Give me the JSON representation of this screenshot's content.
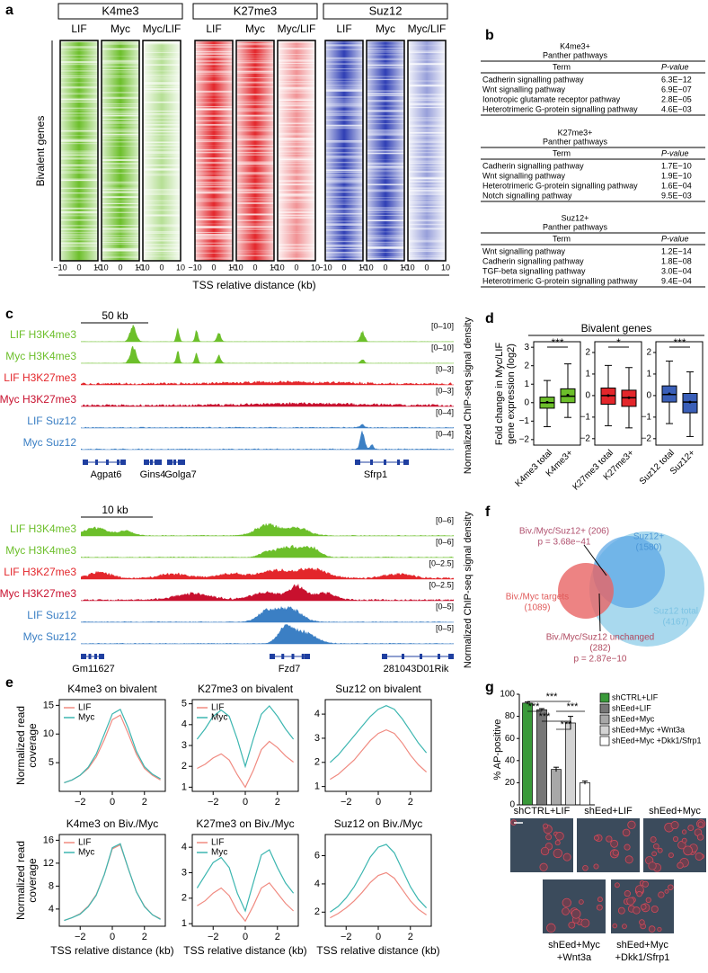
{
  "figure": {
    "panel_labels": [
      "a",
      "b",
      "c",
      "d",
      "e",
      "f",
      "g"
    ]
  },
  "heatmaps": {
    "groups": [
      {
        "name": "K4me3",
        "columns": [
          "LIF",
          "Myc",
          "Myc/LIF"
        ],
        "color": "#6cbf2a"
      },
      {
        "name": "K27me3",
        "columns": [
          "LIF",
          "Myc",
          "Myc/LIF"
        ],
        "color": "#e3262b"
      },
      {
        "name": "Suz12",
        "columns": [
          "LIF",
          "Myc",
          "Myc/LIF"
        ],
        "color": "#2f3fb5"
      }
    ],
    "xtick_labels": [
      "−10",
      "0",
      "10"
    ],
    "ylabel": "Bivalent genes",
    "xlabel": "TSS relative distance (kb)"
  },
  "tables": [
    {
      "heading": "K4me3+",
      "subheading": "Panther pathways",
      "columns": [
        "Term",
        "P-value"
      ],
      "rows": [
        [
          "Cadherin signalling pathway",
          "6.3E−12"
        ],
        [
          "Wnt signalling pathway",
          "6.9E−07"
        ],
        [
          "Ionotropic glutamate receptor pathway",
          "2.8E−05"
        ],
        [
          "Heterotrimeric G-protein signalling pathway",
          "4.6E−03"
        ]
      ]
    },
    {
      "heading": "K27me3+",
      "subheading": "Panther pathways",
      "columns": [
        "Term",
        "P-value"
      ],
      "rows": [
        [
          "Cadherin signalling pathway",
          "1.7E−10"
        ],
        [
          "Wnt signalling pathway",
          "1.9E−10"
        ],
        [
          "Heterotrimeric G-protein signalling pathway",
          "1.6E−04"
        ],
        [
          "Notch signalling pathway",
          "9.5E−03"
        ]
      ]
    },
    {
      "heading": "Suz12+",
      "subheading": "Panther pathways",
      "columns": [
        "Term",
        "P-value"
      ],
      "rows": [
        [
          "Wnt signalling pathway",
          "1.2E−14"
        ],
        [
          "Cadherin signalling pathway",
          "1.8E−08"
        ],
        [
          "TGF-beta signalling pathway",
          "3.0E−04"
        ],
        [
          "Heterotrimeric G-protein signalling pathway",
          "9.4E−04"
        ]
      ]
    }
  ],
  "tracks": {
    "blocks": [
      {
        "scale": "50 kb",
        "ylabel": "Normalized ChIP-seq signal density",
        "tracks": [
          {
            "label": "LIF H3K4me3",
            "range": "[0–10]",
            "color": "#6cbf2a"
          },
          {
            "label": "Myc H3K4me3",
            "range": "[0–10]",
            "color": "#6cbf2a"
          },
          {
            "label": "LIF H3K27me3",
            "range": "[0–3]",
            "color": "#e3262b"
          },
          {
            "label": "Myc H3K27me3",
            "range": "[0–3]",
            "color": "#c8102e"
          },
          {
            "label": "LIF Suz12",
            "range": "[0–4]",
            "color": "#3b7fc4"
          },
          {
            "label": "Myc Suz12",
            "range": "[0–4]",
            "color": "#3b7fc4"
          }
        ],
        "genes": [
          "Agpat6",
          "Gins4",
          "Golga7",
          "Sfrp1"
        ]
      },
      {
        "scale": "10 kb",
        "ylabel": "Normalized ChIP-seq signal density",
        "tracks": [
          {
            "label": "LIF H3K4me3",
            "range": "[0–6]",
            "color": "#6cbf2a"
          },
          {
            "label": "Myc H3K4me3",
            "range": "[0–6]",
            "color": "#6cbf2a"
          },
          {
            "label": "LIF H3K27me3",
            "range": "[0–2.5]",
            "color": "#e3262b"
          },
          {
            "label": "Myc H3K27me3",
            "range": "[0–2.5]",
            "color": "#c8102e"
          },
          {
            "label": "LIF Suz12",
            "range": "[0–5]",
            "color": "#3b7fc4"
          },
          {
            "label": "Myc Suz12",
            "range": "[0–5]",
            "color": "#3b7fc4"
          }
        ],
        "genes": [
          "Gm11627",
          "Fzd7",
          "281043D01Rik"
        ]
      }
    ]
  },
  "panel_d": {
    "title": "Bivalent genes",
    "ylabel": [
      "Fold change in Myc/LIF",
      "gene expression (log2)"
    ]
  },
  "venn": {
    "suz12_plus": [
      "Suz12+",
      "(1580)"
    ],
    "suz12_total": [
      "Suz12 total",
      "(4167)"
    ],
    "biv_myc_suz12_plus": [
      "Biv./Myc/Suz12+ (206)",
      "p = 3.68e−41"
    ],
    "biv_myc_targets": [
      "Biv./Myc targets",
      "(1089)"
    ],
    "biv_myc_suz12_unchanged": [
      "Biv./Myc/Suz12 unchanged",
      "(282)",
      "p = 2.87e−10"
    ]
  },
  "micrographs": {
    "labels": [
      [
        "shCTRL+LIF"
      ],
      [
        "shEed+LIF"
      ],
      [
        "shEed+Myc"
      ],
      [
        "shEed+Myc",
        "+Wnt3a"
      ],
      [
        "shEed+Myc",
        "+Dkk1/Sfrp1"
      ]
    ]
  },
  "chart_data": [
    {
      "type": "line",
      "title": "K4me3 on bivalent",
      "ylabel": [
        "Normalized read",
        "coverage"
      ],
      "legend": true,
      "x": [
        -3,
        -2.5,
        -2,
        -1.5,
        -1,
        -0.5,
        0,
        0.5,
        1,
        1.5,
        2,
        2.5,
        3
      ],
      "series": [
        {
          "name": "LIF",
          "color": "#f08a80",
          "values": [
            1.5,
            2,
            2.8,
            4,
            6,
            9,
            12.5,
            13.3,
            10,
            6.5,
            4,
            2.8,
            2
          ]
        },
        {
          "name": "Myc",
          "color": "#3cb6b0",
          "values": [
            1.5,
            2,
            2.8,
            4.2,
            6.5,
            10,
            13.5,
            14.3,
            11,
            7,
            4.3,
            3,
            2.2
          ]
        }
      ],
      "xlim": [
        -3.3,
        3.3
      ],
      "xticks": [
        {
          "value": -2,
          "label": "−2"
        },
        0,
        2
      ],
      "ylim": [
        0,
        16
      ],
      "yticks": [
        5,
        10,
        15
      ]
    },
    {
      "type": "line",
      "title": "K27me3 on bivalent",
      "legend": true,
      "x": [
        -3,
        -2.5,
        -2,
        -1.5,
        -1,
        -0.5,
        0,
        0.5,
        1,
        1.5,
        2,
        2.5,
        3
      ],
      "series": [
        {
          "name": "LIF",
          "color": "#f08a80",
          "values": [
            1.9,
            2.1,
            2.4,
            2.6,
            2.3,
            1.6,
            1.0,
            1.8,
            2.8,
            3.2,
            2.9,
            2.5,
            2.2
          ]
        },
        {
          "name": "Myc",
          "color": "#3cb6b0",
          "values": [
            3.3,
            3.8,
            4.4,
            4.7,
            4.4,
            3.3,
            2.0,
            3.3,
            4.5,
            4.9,
            4.4,
            3.8,
            3.3
          ]
        }
      ],
      "xlim": [
        -3.3,
        3.3
      ],
      "xticks": [
        {
          "value": -2,
          "label": "−2"
        },
        0,
        2
      ],
      "ylim": [
        0.8,
        5.2
      ],
      "yticks": [
        1,
        2,
        3,
        4,
        5
      ]
    },
    {
      "type": "line",
      "title": "Suz12 on bivalent",
      "legend": false,
      "x": [
        -3,
        -2.5,
        -2,
        -1.5,
        -1,
        -0.5,
        0,
        0.5,
        1,
        1.5,
        2,
        2.5,
        3
      ],
      "series": [
        {
          "color": "#f08a80",
          "values": [
            1.3,
            1.5,
            1.8,
            2.1,
            2.5,
            2.9,
            3.2,
            3.35,
            3.2,
            2.8,
            2.3,
            1.9,
            1.6
          ]
        },
        {
          "color": "#3cb6b0",
          "values": [
            2.0,
            2.3,
            2.7,
            3.1,
            3.5,
            3.9,
            4.2,
            4.35,
            4.2,
            3.8,
            3.3,
            2.8,
            2.4
          ]
        }
      ],
      "xlim": [
        -3.3,
        3.3
      ],
      "xticks": [
        {
          "value": -2,
          "label": "−2"
        },
        0,
        2
      ],
      "ylim": [
        0.8,
        4.6
      ],
      "yticks": [
        1,
        2,
        3,
        4
      ]
    },
    {
      "type": "line",
      "title": "K4me3 on Biv./Myc",
      "ylabel": [
        "Normalized read",
        "coverage"
      ],
      "xlabel": "TSS relative distance (kb)",
      "legend": true,
      "x": [
        -3,
        -2.5,
        -2,
        -1.5,
        -1,
        -0.5,
        0,
        0.5,
        1,
        1.5,
        2,
        2.5,
        3
      ],
      "series": [
        {
          "name": "LIF",
          "color": "#f08a80",
          "values": [
            2,
            2.5,
            3.2,
            4.5,
            6.5,
            10,
            14.5,
            15.2,
            11,
            7,
            4.5,
            3,
            2.3
          ]
        },
        {
          "name": "Myc",
          "color": "#3cb6b0",
          "values": [
            2,
            2.5,
            3.1,
            4.4,
            6.4,
            10,
            14.7,
            15.4,
            11,
            7,
            4.4,
            3,
            2.2
          ]
        }
      ],
      "xlim": [
        -3.3,
        3.3
      ],
      "xticks": [
        {
          "value": -2,
          "label": "−2"
        },
        0,
        2
      ],
      "ylim": [
        1,
        17
      ],
      "yticks": [
        4,
        8,
        12,
        16
      ]
    },
    {
      "type": "line",
      "title": "K27me3 on Biv./Myc",
      "xlabel": "TSS relative distance (kb)",
      "legend": true,
      "x": [
        -3,
        -2.5,
        -2,
        -1.5,
        -1,
        -0.5,
        0,
        0.5,
        1,
        1.5,
        2,
        2.5,
        3
      ],
      "series": [
        {
          "name": "LIF",
          "color": "#f08a80",
          "values": [
            1.7,
            1.9,
            2.2,
            2.4,
            2.1,
            1.5,
            1.1,
            1.7,
            2.4,
            2.6,
            2.2,
            1.8,
            1.5
          ]
        },
        {
          "name": "Myc",
          "color": "#3cb6b0",
          "values": [
            2.4,
            2.9,
            3.4,
            3.6,
            3.2,
            2.2,
            1.5,
            2.6,
            3.7,
            3.9,
            3.2,
            2.6,
            2.2
          ]
        }
      ],
      "xlim": [
        -3.3,
        3.3
      ],
      "xticks": [
        {
          "value": -2,
          "label": "−2"
        },
        0,
        2
      ],
      "ylim": [
        0.9,
        4.5
      ],
      "yticks": [
        1,
        2,
        3,
        4
      ]
    },
    {
      "type": "line",
      "title": "Suz12 on Biv./Myc",
      "xlabel": "TSS relative distance (kb)",
      "legend": false,
      "x": [
        -3,
        -2.5,
        -2,
        -1.5,
        -1,
        -0.5,
        0,
        0.5,
        1,
        1.5,
        2,
        2.5,
        3
      ],
      "series": [
        {
          "color": "#f08a80",
          "values": [
            1.6,
            1.9,
            2.3,
            2.8,
            3.4,
            4.1,
            4.6,
            4.8,
            4.4,
            3.6,
            2.8,
            2.2,
            1.8
          ]
        },
        {
          "color": "#3cb6b0",
          "values": [
            2,
            2.4,
            3,
            3.8,
            4.8,
            5.9,
            6.6,
            6.8,
            6.2,
            5.0,
            3.8,
            2.9,
            2.3
          ]
        }
      ],
      "xlim": [
        -3.3,
        3.3
      ],
      "xticks": [
        {
          "value": -2,
          "label": "−2"
        },
        0,
        2
      ],
      "ylim": [
        1,
        7.5
      ],
      "yticks": [
        2,
        4,
        6
      ]
    },
    {
      "type": "box",
      "categories": [
        "K4me3 total",
        "K4me3+"
      ],
      "color": "#6cbf2a",
      "annotation": "***",
      "stats": [
        {
          "whisker_low": -1.3,
          "q1": -0.3,
          "median": 0,
          "q3": 0.3,
          "whisker_high": 1.2,
          "mean": 0.02
        },
        {
          "whisker_low": -0.8,
          "q1": 0,
          "median": 0.35,
          "q3": 0.75,
          "whisker_high": 2.1,
          "mean": 0.4
        }
      ],
      "ylim": [
        -2.3,
        3.3
      ],
      "yticks": [
        {
          "value": -2,
          "label": "−2"
        },
        {
          "value": -1,
          "label": "−1"
        },
        0,
        1,
        2,
        3
      ]
    },
    {
      "type": "box",
      "categories": [
        "K27me3 total",
        "K27me3+"
      ],
      "color": "#e3262b",
      "annotation": "*",
      "stats": [
        {
          "whisker_low": -1.4,
          "q1": -0.4,
          "median": 0,
          "q3": 0.35,
          "whisker_high": 1.4,
          "mean": 0
        },
        {
          "whisker_low": -1.5,
          "q1": -0.5,
          "median": -0.1,
          "q3": 0.25,
          "whisker_high": 1.3,
          "mean": -0.1
        }
      ],
      "ylim": [
        -2.3,
        2.5
      ],
      "yticks": [
        {
          "value": -2,
          "label": "−2"
        },
        {
          "value": -1,
          "label": "−1"
        },
        0,
        1,
        2
      ]
    },
    {
      "type": "box",
      "categories": [
        "Suz12 total",
        "Suz12+"
      ],
      "color": "#3a5fb8",
      "annotation": "***",
      "stats": [
        {
          "whisker_low": -1.3,
          "q1": -0.3,
          "median": 0.05,
          "q3": 0.45,
          "whisker_high": 1.6,
          "mean": 0.08
        },
        {
          "whisker_low": -1.9,
          "q1": -0.8,
          "median": -0.3,
          "q3": 0.1,
          "whisker_high": 1.1,
          "mean": -0.3
        }
      ],
      "ylim": [
        -2.3,
        2.5
      ],
      "yticks": [
        {
          "value": -2,
          "label": "−2"
        },
        {
          "value": -1,
          "label": "−1"
        },
        0,
        1,
        2
      ]
    },
    {
      "type": "bar",
      "ylabel": "% AP-positive",
      "categories": [
        "shCTRL+LIF",
        "shEed+LIF",
        "shEed+Myc",
        "shEed+Myc +Wnt3a",
        "shEed+Myc +Dkk1/Sfrp1"
      ],
      "values": [
        92,
        86,
        32,
        74,
        20
      ],
      "errors": [
        1,
        1,
        2,
        6,
        1.5
      ],
      "colors": [
        "#3a9a3a",
        "#777777",
        "#a8a8a8",
        "#d4d4d4",
        "#ffffff"
      ],
      "annotations": [
        "***",
        "***",
        "***",
        "***",
        "***"
      ],
      "ylim": [
        0,
        100
      ],
      "yticks": [
        0,
        20,
        40,
        60,
        80,
        100
      ]
    }
  ]
}
